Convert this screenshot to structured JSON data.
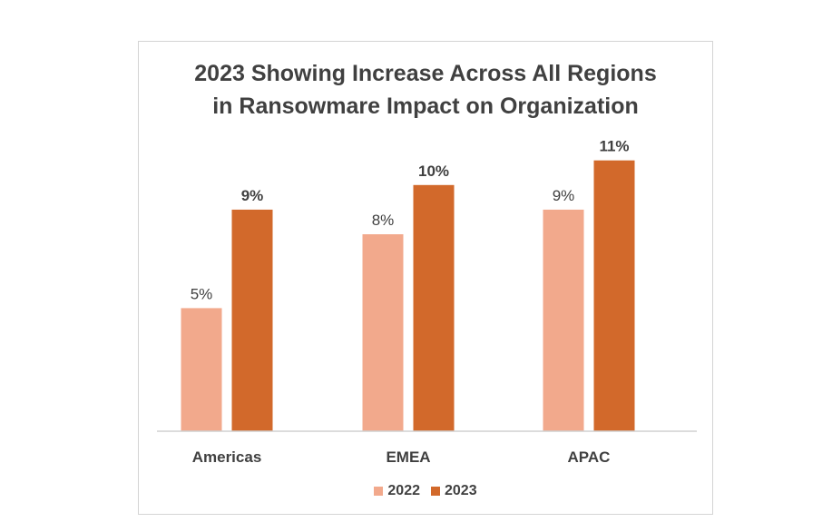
{
  "chart_data": {
    "type": "bar",
    "title_lines": [
      "2023 Showing Increase Across All Regions",
      "in Ransowmare Impact on Organization"
    ],
    "categories": [
      "Americas",
      "EMEA",
      "APAC"
    ],
    "series": [
      {
        "name": "2022",
        "values": [
          5,
          8,
          9
        ],
        "labels": [
          "5%",
          "8%",
          "9%"
        ],
        "color": "#f2a98c",
        "label_bold": false
      },
      {
        "name": "2023",
        "values": [
          9,
          10,
          11
        ],
        "labels": [
          "9%",
          "10%",
          "11%"
        ],
        "color": "#d2692b",
        "label_bold": true
      }
    ],
    "ylim": [
      0,
      12.5
    ],
    "grid": false,
    "legend_position": "bottom"
  }
}
